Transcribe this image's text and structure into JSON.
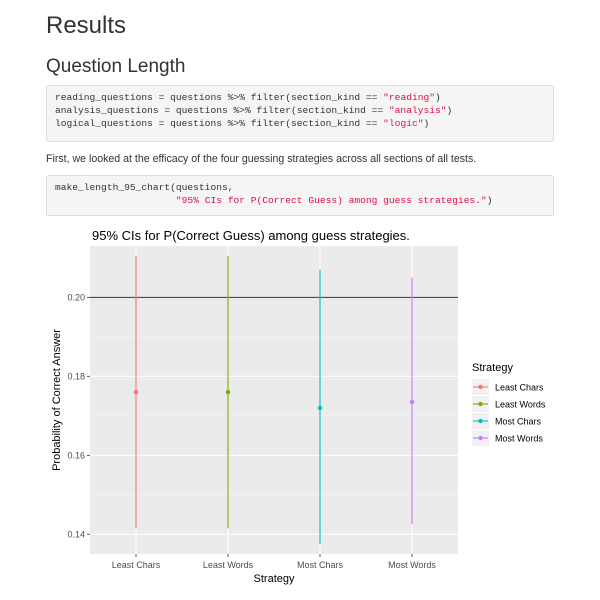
{
  "page": {
    "heading": "Results",
    "subheading": "Question Length",
    "paragraph": "First, we looked at the efficacy of the four guessing strategies across all sections of all tests.",
    "code_block_1": [
      [
        {
          "t": "reading_questions = questions %>% filter(section_kind == "
        },
        {
          "t": "\"reading\"",
          "s": true
        },
        {
          "t": ")"
        }
      ],
      [
        {
          "t": "analysis_questions = questions %>% filter(section_kind == "
        },
        {
          "t": "\"analysis\"",
          "s": true
        },
        {
          "t": ")"
        }
      ],
      [
        {
          "t": "logical_questions = questions %>% filter(section_kind == "
        },
        {
          "t": "\"logic\"",
          "s": true
        },
        {
          "t": ")"
        }
      ]
    ],
    "code_block_2": [
      [
        {
          "t": "make_length_95_chart(questions,"
        }
      ],
      [
        {
          "t": "                     "
        },
        {
          "t": "\"95% CIs for P(Correct Guess) among guess strategies.\"",
          "s": true
        },
        {
          "t": ")"
        }
      ]
    ]
  },
  "chart_data": {
    "type": "errorbar",
    "title": "95% CIs for P(Correct Guess) among guess strategies.",
    "xlabel": "Strategy",
    "ylabel": "Probability of Correct Answer",
    "categories": [
      "Least Chars",
      "Least Words",
      "Most Chars",
      "Most Words"
    ],
    "ylim": [
      0.135,
      0.213
    ],
    "yticks": [
      0.14,
      0.16,
      0.18,
      0.2
    ],
    "ytick_labels": [
      "0.14",
      "0.16",
      "0.18",
      "0.20"
    ],
    "reference_line": 0.2,
    "grid": true,
    "legend": {
      "title": "Strategy",
      "position": "right"
    },
    "series": [
      {
        "name": "Least Chars",
        "estimate": 0.176,
        "lower": 0.1415,
        "upper": 0.2105,
        "color": "#F8766D"
      },
      {
        "name": "Least Words",
        "estimate": 0.176,
        "lower": 0.1415,
        "upper": 0.2105,
        "color": "#7CAE00"
      },
      {
        "name": "Most Chars",
        "estimate": 0.172,
        "lower": 0.1375,
        "upper": 0.207,
        "color": "#00BFC4"
      },
      {
        "name": "Most Words",
        "estimate": 0.1735,
        "lower": 0.1425,
        "upper": 0.205,
        "color": "#C77CFF"
      }
    ]
  }
}
